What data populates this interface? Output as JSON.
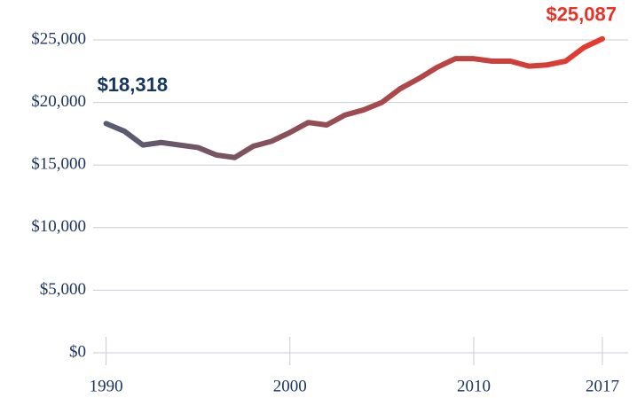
{
  "chart_data": {
    "type": "line",
    "x": [
      1990,
      1991,
      1992,
      1993,
      1994,
      1995,
      1996,
      1997,
      1998,
      1999,
      2000,
      2001,
      2002,
      2003,
      2004,
      2005,
      2006,
      2007,
      2008,
      2009,
      2010,
      2011,
      2012,
      2013,
      2014,
      2015,
      2016,
      2017
    ],
    "values": [
      18318,
      17700,
      16600,
      16800,
      16600,
      16400,
      15800,
      15600,
      16500,
      16900,
      17600,
      18400,
      18200,
      19000,
      19400,
      20000,
      21100,
      21900,
      22800,
      23500,
      23500,
      23300,
      23300,
      22900,
      23000,
      23300,
      24400,
      25087
    ],
    "value_labels": [
      "$18,318",
      null,
      null,
      null,
      null,
      null,
      null,
      null,
      null,
      null,
      null,
      null,
      null,
      null,
      null,
      null,
      null,
      null,
      null,
      null,
      null,
      null,
      null,
      null,
      null,
      null,
      null,
      "$25,087"
    ],
    "colors": [
      "#565c72",
      "#e8392d"
    ],
    "xlim": [
      1989.2,
      2018.4
    ],
    "xticks": [
      1990,
      2000,
      2010,
      2017
    ],
    "ylim": [
      0,
      25000
    ],
    "yticks": [
      {
        "value": 0,
        "label": "$0"
      },
      {
        "value": 5000,
        "label": "$5,000"
      },
      {
        "value": 10000,
        "label": "$10,000"
      },
      {
        "value": 15000,
        "label": "$15,000"
      },
      {
        "value": 20000,
        "label": "$20,000"
      },
      {
        "value": 25000,
        "label": "$25,000"
      }
    ],
    "grid": true
  }
}
